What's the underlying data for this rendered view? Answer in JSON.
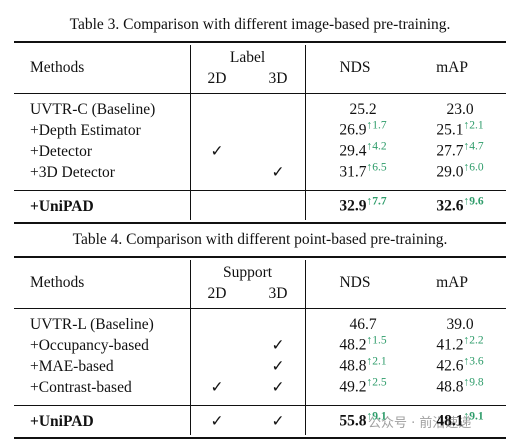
{
  "tables": [
    {
      "caption": "Table 3. Comparison with different image-based pre-training.",
      "header": {
        "methods": "Methods",
        "group": "Label",
        "sub": [
          "2D",
          "3D"
        ],
        "nds": "NDS",
        "map": "mAP"
      },
      "rows": [
        {
          "method": "UVTR-C (Baseline)",
          "nds": "25.2",
          "map": "23.0"
        },
        {
          "method": "+Depth Estimator",
          "nds": "26.9",
          "nds_gain": "↑1.7",
          "map": "25.1",
          "map_gain": "↑2.1"
        },
        {
          "method": "+Detector",
          "d2": "✓",
          "nds": "29.4",
          "nds_gain": "↑4.2",
          "map": "27.7",
          "map_gain": "↑4.7"
        },
        {
          "method": "+3D Detector",
          "d3": "✓",
          "nds": "31.7",
          "nds_gain": "↑6.5",
          "map": "29.0",
          "map_gain": "↑6.0"
        }
      ],
      "final": {
        "method": "+UniPAD",
        "nds": "32.9",
        "nds_gain": "↑7.7",
        "map": "32.6",
        "map_gain": "↑9.6"
      }
    },
    {
      "caption": "Table 4. Comparison with different point-based pre-training.",
      "header": {
        "methods": "Methods",
        "group": "Support",
        "sub": [
          "2D",
          "3D"
        ],
        "nds": "NDS",
        "map": "mAP"
      },
      "rows": [
        {
          "method": "UVTR-L (Baseline)",
          "nds": "46.7",
          "map": "39.0"
        },
        {
          "method": "+Occupancy-based",
          "d3": "✓",
          "nds": "48.2",
          "nds_gain": "↑1.5",
          "map": "41.2",
          "map_gain": "↑2.2"
        },
        {
          "method": "+MAE-based",
          "d3": "✓",
          "nds": "48.8",
          "nds_gain": "↑2.1",
          "map": "42.6",
          "map_gain": "↑3.6"
        },
        {
          "method": "+Contrast-based",
          "d2": "✓",
          "d3": "✓",
          "nds": "49.2",
          "nds_gain": "↑2.5",
          "map": "48.8",
          "map_gain": "↑9.8"
        }
      ],
      "final": {
        "method": "+UniPAD",
        "d2": "✓",
        "d3": "✓",
        "nds": "55.8",
        "nds_gain": "↑9.1",
        "map": "48.1",
        "map_gain": "↑9.1"
      }
    }
  ],
  "watermark": "公众号 · 前沿速递"
}
